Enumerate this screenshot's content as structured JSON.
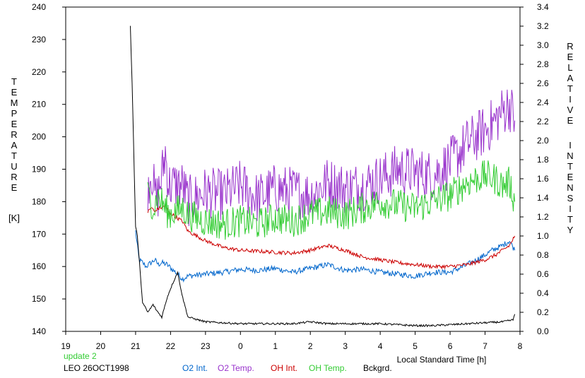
{
  "chart_data": {
    "type": "line",
    "xlabel": "Local Standard Time [h]",
    "x_tick_labels": [
      "19",
      "20",
      "21",
      "22",
      "23",
      "0",
      "1",
      "2",
      "3",
      "4",
      "5",
      "6",
      "7",
      "8"
    ],
    "left_axis": {
      "label_letters": [
        "T",
        "E",
        "M",
        "P",
        "E",
        "R",
        "A",
        "T",
        "U",
        "R",
        "E"
      ],
      "unit": "[K]",
      "ylim": [
        140,
        240
      ],
      "ticks": [
        140,
        150,
        160,
        170,
        180,
        190,
        200,
        210,
        220,
        230,
        240
      ]
    },
    "right_axis": {
      "label_letters_1": [
        "R",
        "E",
        "L",
        "A",
        "T",
        "I",
        "V",
        "E"
      ],
      "label_letters_2": [
        "I",
        "N",
        "T",
        "E",
        "N",
        "S",
        "I",
        "T",
        "Y"
      ],
      "ylim": [
        0,
        3.4
      ],
      "ticks": [
        "0.0",
        "0.2",
        "0.4",
        "0.6",
        "0.8",
        "1.0",
        "1.2",
        "1.4",
        "1.6",
        "1.8",
        "2.0",
        "2.2",
        "2.4",
        "2.6",
        "2.8",
        "3.0",
        "3.2",
        "3.4"
      ]
    },
    "x_unit_note": "x values in hours after 19:00 local time (0 = 19, 5 = 0, 13 = 8)",
    "series": [
      {
        "name": "O2 Int.",
        "color": "#0066cc",
        "axis": "right",
        "x": [
          2.0,
          2.1,
          2.2,
          2.3,
          2.55,
          2.65,
          2.75,
          2.9,
          3.35,
          3.5,
          4.0,
          4.5,
          5.0,
          5.5,
          6.0,
          6.5,
          7.0,
          7.5,
          8.0,
          8.5,
          9.0,
          9.5,
          10.0,
          10.5,
          11.0,
          11.5,
          12.0,
          12.2,
          12.5,
          12.7,
          12.85
        ],
        "y": [
          1.05,
          0.75,
          0.72,
          0.68,
          0.75,
          0.7,
          0.72,
          0.7,
          0.55,
          0.58,
          0.6,
          0.62,
          0.65,
          0.64,
          0.66,
          0.62,
          0.66,
          0.7,
          0.64,
          0.65,
          0.62,
          0.6,
          0.58,
          0.62,
          0.62,
          0.7,
          0.8,
          0.85,
          0.9,
          0.95,
          0.85
        ]
      },
      {
        "name": "O2 Temp.",
        "color": "#9933cc",
        "axis": "left",
        "x": [
          2.35,
          2.45,
          2.55,
          2.6,
          2.75,
          2.85,
          2.95,
          3.35,
          3.5,
          4.0,
          4.5,
          5.0,
          5.5,
          6.0,
          6.5,
          7.0,
          7.5,
          8.0,
          8.5,
          9.0,
          9.5,
          10.0,
          10.5,
          11.0,
          11.5,
          12.0,
          12.3,
          12.5,
          12.7,
          12.85
        ],
        "y": [
          185,
          190,
          182,
          180,
          188,
          195,
          185,
          185,
          180,
          183,
          182,
          185,
          181,
          184,
          183,
          182,
          186,
          184,
          185,
          187,
          190,
          189,
          188,
          192,
          198,
          202,
          205,
          208,
          210,
          205
        ]
      },
      {
        "name": "OH Int.",
        "color": "#cc0000",
        "axis": "right",
        "x": [
          2.35,
          2.45,
          2.55,
          2.6,
          2.75,
          2.85,
          2.95,
          3.35,
          3.5,
          4.0,
          4.5,
          5.0,
          5.5,
          6.0,
          6.5,
          7.0,
          7.5,
          8.0,
          8.5,
          9.0,
          9.5,
          10.0,
          10.5,
          11.0,
          11.5,
          12.0,
          12.3,
          12.5,
          12.7,
          12.85
        ],
        "y": [
          1.25,
          1.3,
          1.25,
          1.28,
          1.3,
          1.32,
          1.25,
          1.15,
          1.05,
          0.95,
          0.88,
          0.85,
          0.84,
          0.83,
          0.82,
          0.85,
          0.9,
          0.85,
          0.78,
          0.75,
          0.72,
          0.7,
          0.68,
          0.68,
          0.7,
          0.75,
          0.8,
          0.85,
          0.9,
          1.0
        ]
      },
      {
        "name": "OH Temp.",
        "color": "#33cc33",
        "axis": "left",
        "x": [
          2.35,
          2.45,
          2.55,
          2.6,
          2.75,
          2.85,
          2.95,
          3.35,
          3.5,
          4.0,
          4.5,
          5.0,
          5.5,
          6.0,
          6.5,
          7.0,
          7.5,
          8.0,
          8.5,
          9.0,
          9.5,
          10.0,
          10.5,
          11.0,
          11.5,
          12.0,
          12.3,
          12.5,
          12.7,
          12.85
        ],
        "y": [
          182,
          180,
          178,
          182,
          180,
          178,
          176,
          178,
          176,
          174,
          173,
          174,
          173,
          175,
          174,
          176,
          177,
          176,
          178,
          180,
          179,
          178,
          180,
          182,
          186,
          188,
          187,
          185,
          186,
          180
        ]
      },
      {
        "name": "Bckgrd.",
        "color": "#000000",
        "axis": "right",
        "x": [
          1.85,
          1.9,
          2.0,
          2.05,
          2.2,
          2.35,
          2.5,
          2.6,
          2.75,
          2.9,
          3.0,
          3.2,
          3.35,
          3.5,
          4.0,
          4.5,
          5.0,
          5.5,
          6.0,
          6.5,
          7.0,
          7.5,
          8.0,
          8.5,
          9.0,
          9.5,
          10.0,
          10.5,
          11.0,
          11.5,
          12.0,
          12.5,
          12.8,
          12.85
        ],
        "y": [
          3.2,
          2.6,
          1.1,
          1.0,
          0.3,
          0.2,
          0.28,
          0.22,
          0.15,
          0.35,
          0.45,
          0.62,
          0.35,
          0.15,
          0.1,
          0.09,
          0.08,
          0.08,
          0.08,
          0.08,
          0.1,
          0.08,
          0.08,
          0.08,
          0.08,
          0.07,
          0.06,
          0.06,
          0.07,
          0.08,
          0.09,
          0.1,
          0.12,
          0.18
        ]
      }
    ]
  },
  "info": {
    "update_text": "update 2",
    "station_date": "LEO 26OCT1998"
  },
  "colors": {
    "update": "#33cc33",
    "axis": "#000000",
    "background": "#ffffff"
  }
}
